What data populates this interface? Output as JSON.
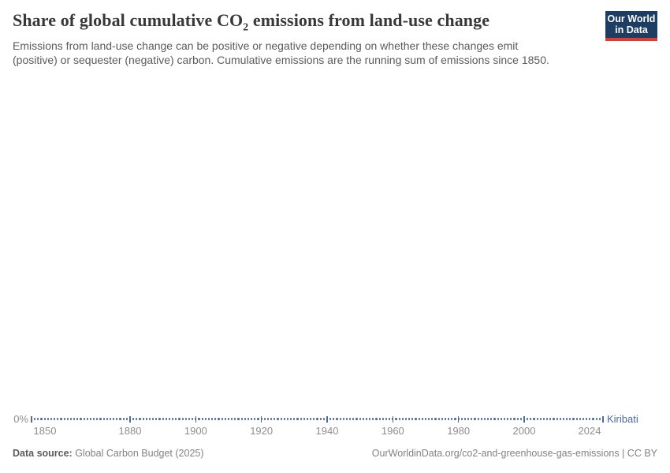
{
  "header": {
    "title_pre": "Share of global cumulative CO",
    "title_sub": "2",
    "title_post": " emissions from land-use change",
    "subtitle_line1": "Emissions from land-use change can be positive or negative depending on whether these changes emit",
    "subtitle_line2": "(positive) or sequester (negative) carbon. Cumulative emissions are the running sum of emissions since 1850.",
    "logo": {
      "line1": "Our World",
      "line2": "in Data",
      "bg_color": "#1d3d63",
      "accent_color": "#dc3d33"
    }
  },
  "chart_data": {
    "type": "line",
    "title": "Share of global cumulative CO₂ emissions from land-use change",
    "entity": "Kiribati",
    "x_range": [
      1850,
      2024
    ],
    "x_ticks": [
      1850,
      1880,
      1900,
      1920,
      1940,
      1960,
      1980,
      2000,
      2024
    ],
    "y_axis": {
      "ticks": [
        "0%"
      ],
      "ylim_shown": [
        0,
        0
      ]
    },
    "series": [
      {
        "name": "Kiribati",
        "color": "#4c6a9c",
        "constant_value_percent": 0,
        "note_values": "flat at 0% for every year from 1850 through 2024"
      }
    ],
    "grid": false,
    "marker_style": "dot-per-year",
    "legend_position": "end-of-line-label"
  },
  "footer": {
    "source_label": "Data source:",
    "source_value": " Global Carbon Budget (2025)",
    "credit": "OurWorldinData.org/co2-and-greenhouse-gas-emissions | CC BY"
  }
}
